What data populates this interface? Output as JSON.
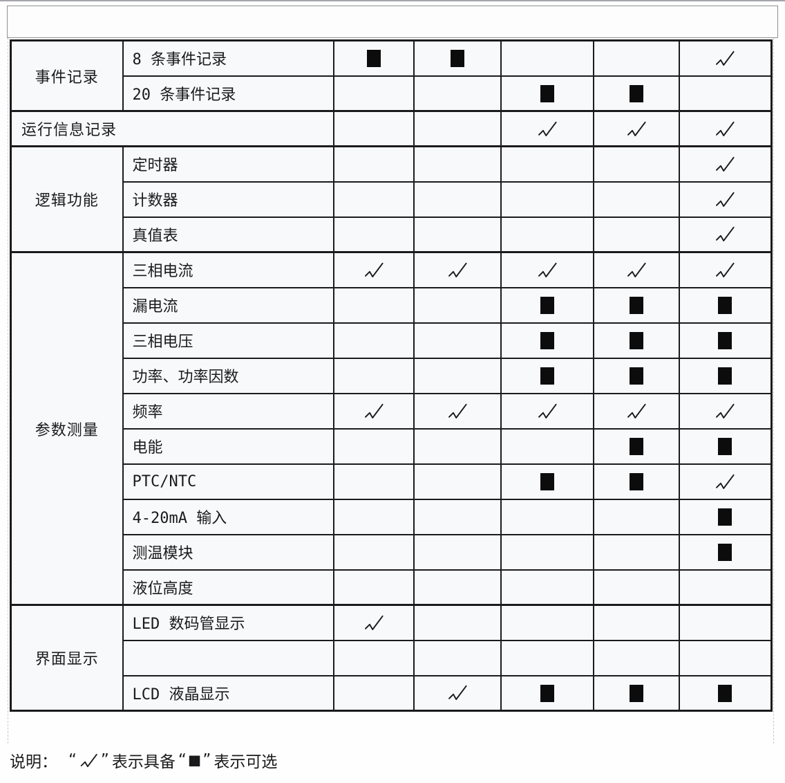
{
  "legend_note": {
    "prefix": "说明：",
    "quote_open": "“",
    "quote_close": "”",
    "check_symbol": "√",
    "check_meaning": "表示具备",
    "square_symbol": "■",
    "square_meaning": "表示可选"
  },
  "marks_legend": {
    "check": "具备",
    "square": "可选"
  },
  "table": {
    "header_band_text": "",
    "model_column_count": 5,
    "sections": [
      {
        "category": "事件记录",
        "rows": [
          {
            "feature": "8 条事件记录",
            "marks": [
              "square",
              "square",
              "",
              "",
              "check"
            ]
          },
          {
            "feature": "20 条事件记录",
            "marks": [
              "",
              "",
              "square",
              "square",
              ""
            ]
          }
        ]
      },
      {
        "category": "运行信息记录",
        "span_feature": true,
        "rows": [
          {
            "feature": "",
            "marks": [
              "",
              "",
              "check",
              "check",
              "check"
            ]
          }
        ]
      },
      {
        "category": "逻辑功能",
        "rows": [
          {
            "feature": "定时器",
            "marks": [
              "",
              "",
              "",
              "",
              "check"
            ]
          },
          {
            "feature": "计数器",
            "marks": [
              "",
              "",
              "",
              "",
              "check"
            ]
          },
          {
            "feature": "真值表",
            "marks": [
              "",
              "",
              "",
              "",
              "check"
            ]
          }
        ]
      },
      {
        "category": "参数测量",
        "rows": [
          {
            "feature": "三相电流",
            "marks": [
              "check",
              "check",
              "check",
              "check",
              "check"
            ]
          },
          {
            "feature": "漏电流",
            "marks": [
              "",
              "",
              "square",
              "square",
              "square"
            ]
          },
          {
            "feature": "三相电压",
            "marks": [
              "",
              "",
              "square",
              "square",
              "square"
            ]
          },
          {
            "feature": "功率、功率因数",
            "marks": [
              "",
              "",
              "square",
              "square",
              "square"
            ]
          },
          {
            "feature": "频率",
            "marks": [
              "check",
              "check",
              "check",
              "check",
              "check"
            ]
          },
          {
            "feature": "电能",
            "marks": [
              "",
              "",
              "",
              "square",
              "square"
            ]
          },
          {
            "feature": "PTC/NTC",
            "marks": [
              "",
              "",
              "square",
              "square",
              "check"
            ]
          },
          {
            "feature": "4-20mA 输入",
            "marks": [
              "",
              "",
              "",
              "",
              "square"
            ]
          },
          {
            "feature": "测温模块",
            "marks": [
              "",
              "",
              "",
              "",
              "square"
            ]
          },
          {
            "feature": "液位高度",
            "marks": [
              "",
              "",
              "",
              "",
              ""
            ]
          }
        ]
      },
      {
        "category": "界面显示",
        "rows": [
          {
            "feature": "LED 数码管显示",
            "marks": [
              "check",
              "",
              "",
              "",
              ""
            ]
          },
          {
            "feature": "",
            "marks": [
              "",
              "",
              "",
              "",
              ""
            ]
          },
          {
            "feature": "LCD 液晶显示",
            "marks": [
              "",
              "check",
              "square",
              "square",
              "square"
            ]
          }
        ]
      }
    ]
  },
  "colors": {
    "border": "#1b1b1d",
    "cell_bg": "#f8f9fb",
    "mark": "#0c0c0d",
    "band_border": "#8f9094"
  }
}
